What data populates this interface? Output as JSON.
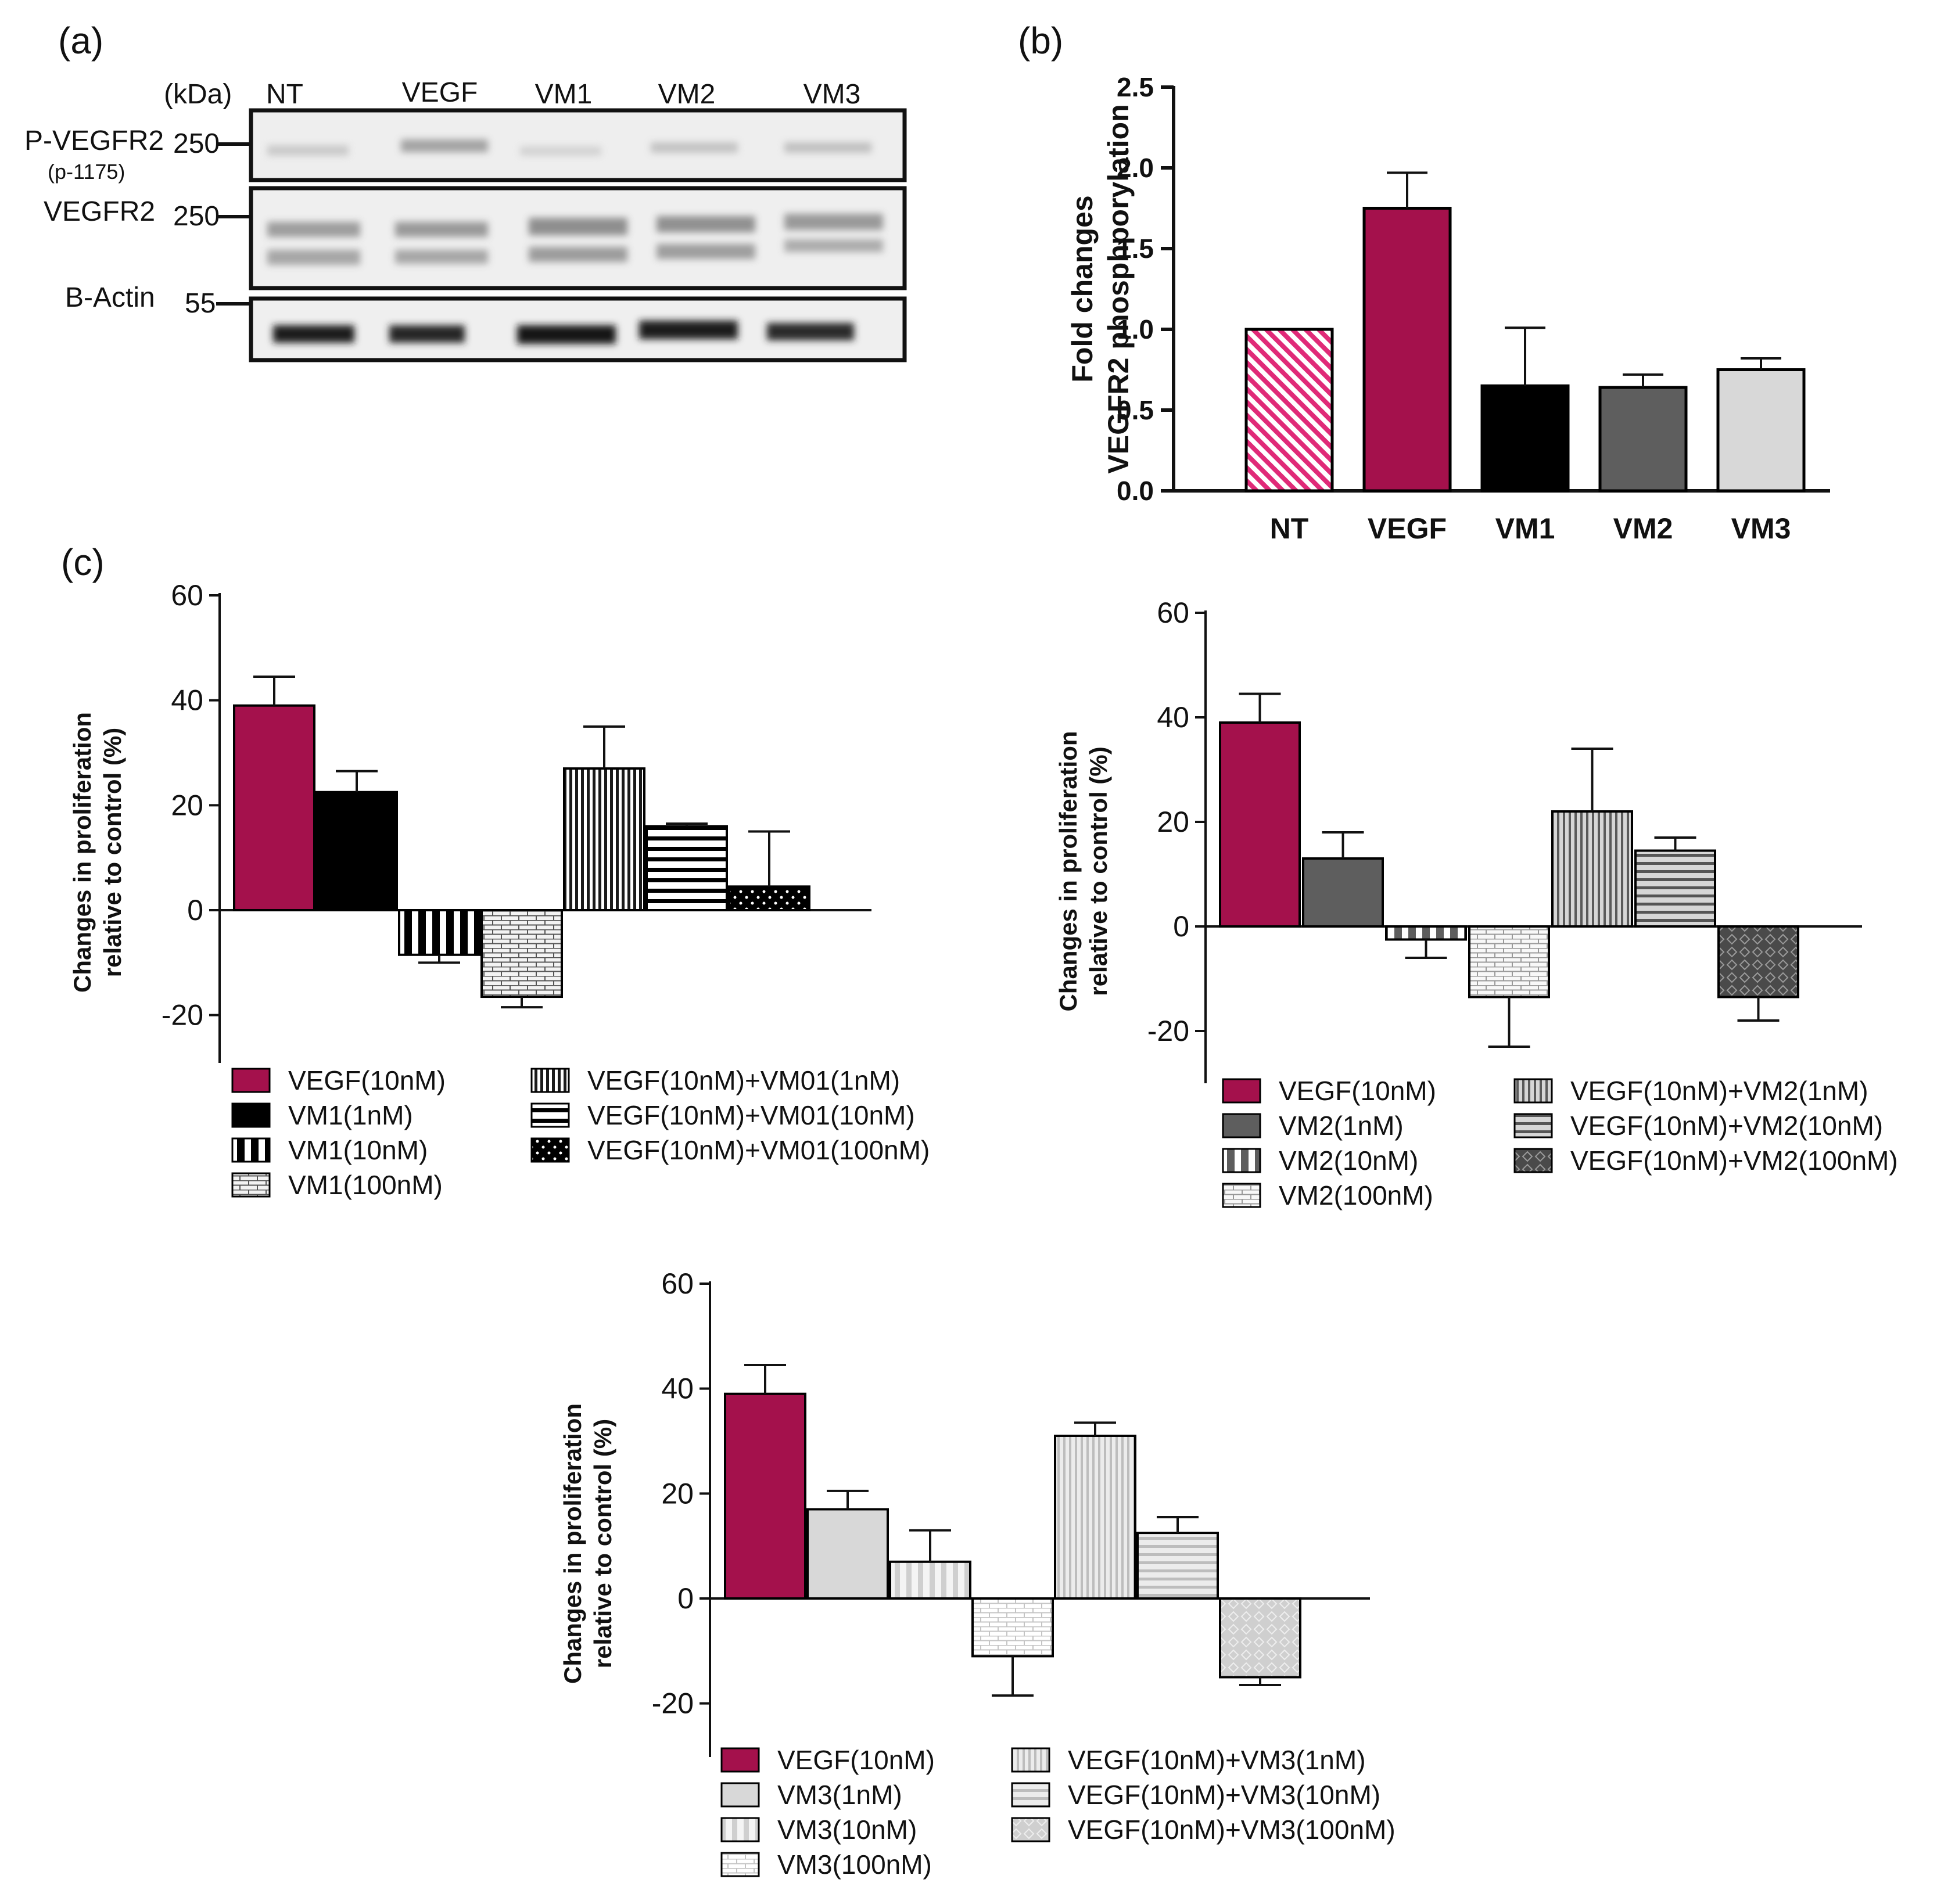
{
  "panels": {
    "a": "(a)",
    "b": "(b)",
    "c": "(c)"
  },
  "western_blot": {
    "unit_label": "(kDa)",
    "lanes": [
      "NT",
      "VEGF",
      "VM1",
      "VM2",
      "VM3"
    ],
    "rows": [
      {
        "label": "P-VEGFR2",
        "sublabel": "(p-1175)",
        "marker": "250"
      },
      {
        "label": "VEGFR2",
        "sublabel": "",
        "marker": "250"
      },
      {
        "label": "B-Actin",
        "sublabel": "",
        "marker": "55"
      }
    ]
  },
  "colors": {
    "vegf": "#a4114c",
    "nt_stripe": "#e02a78",
    "vm1": "#000000",
    "vm2": "#5e5e5e",
    "vm3": "#d8d8d8"
  },
  "chart_data": [
    {
      "id": "b",
      "type": "bar",
      "title": "",
      "ylabel": "Fold changes VEGFR2 phosphporylation",
      "ylabel_lines": [
        "Fold changes",
        "VEGFR2 phosphporylation"
      ],
      "ylim": [
        0,
        2.5
      ],
      "yticks": [
        "0.0",
        "0.5",
        "1.0",
        "1.5",
        "2.0",
        "2.5"
      ],
      "categories": [
        "NT",
        "VEGF",
        "VM1",
        "VM2",
        "VM3"
      ],
      "values": [
        1.0,
        1.75,
        0.65,
        0.64,
        0.75
      ],
      "errors": [
        0.0,
        0.22,
        0.36,
        0.08,
        0.07
      ]
    },
    {
      "id": "c1",
      "type": "bar",
      "ylabel": "Changes in proliferation relative to control (%)",
      "ylabel_lines": [
        "Changes in proliferation",
        "relative to control (%)"
      ],
      "ylim": [
        -30,
        60
      ],
      "yticks": [
        "-20",
        "0",
        "20",
        "40",
        "60"
      ],
      "categories": [
        "VEGF(10nM)",
        "VM1(1nM)",
        "VM1(10nM)",
        "VM1(100nM)",
        "VEGF(10nM)+VM01(1nM)",
        "VEGF(10nM)+VM01(10nM)",
        "VEGF(10nM)+VM01(100nM)"
      ],
      "values": [
        39,
        22.5,
        -8.5,
        -16.5,
        27,
        16,
        4.5
      ],
      "errors": [
        5.5,
        4,
        1.5,
        2,
        8,
        0.5,
        10.5
      ],
      "legend": [
        "VEGF(10nM)",
        "VM1(1nM)",
        "VM1(10nM)",
        "VM1(100nM)",
        "VEGF(10nM)+VM01(1nM)",
        "VEGF(10nM)+VM01(10nM)",
        "VEGF(10nM)+VM01(100nM)"
      ]
    },
    {
      "id": "c2",
      "type": "bar",
      "ylabel": "Changes in proliferation relative to control (%)",
      "ylabel_lines": [
        "Changes in proliferation",
        "relative to control (%)"
      ],
      "ylim": [
        -30,
        60
      ],
      "yticks": [
        "-20",
        "0",
        "20",
        "40",
        "60"
      ],
      "categories": [
        "VEGF(10nM)",
        "VM2(1nM)",
        "VM2(10nM)",
        "VM2(100nM)",
        "VEGF(10nM)+VM2(1nM)",
        "VEGF(10nM)+VM2(10nM)",
        "VEGF(10nM)+VM2(100nM)"
      ],
      "values": [
        39,
        13,
        -2.5,
        -13.5,
        22,
        14.5,
        -13.5
      ],
      "errors": [
        5.5,
        5,
        3.5,
        9.5,
        12,
        2.5,
        4.5
      ],
      "legend": [
        "VEGF(10nM)",
        "VM2(1nM)",
        "VM2(10nM)",
        "VM2(100nM)",
        "VEGF(10nM)+VM2(1nM)",
        "VEGF(10nM)+VM2(10nM)",
        "VEGF(10nM)+VM2(100nM)"
      ]
    },
    {
      "id": "c3",
      "type": "bar",
      "ylabel": "Changes in proliferation relative to control (%)",
      "ylabel_lines": [
        "Changes in proliferation",
        "relative to control (%)"
      ],
      "ylim": [
        -30,
        60
      ],
      "yticks": [
        "-20",
        "0",
        "20",
        "40",
        "60"
      ],
      "categories": [
        "VEGF(10nM)",
        "VM3(1nM)",
        "VM3(10nM)",
        "VM3(100nM)",
        "VEGF(10nM)+VM3(1nM)",
        "VEGF(10nM)+VM3(10nM)",
        "VEGF(10nM)+VM3(100nM)"
      ],
      "values": [
        39,
        17,
        7,
        -11,
        31,
        12.5,
        -15
      ],
      "errors": [
        5.5,
        3.5,
        6,
        7.5,
        2.5,
        3,
        1.5
      ],
      "legend": [
        "VEGF(10nM)",
        "VM3(1nM)",
        "VM3(10nM)",
        "VM3(100nM)",
        "VEGF(10nM)+VM3(1nM)",
        "VEGF(10nM)+VM3(10nM)",
        "VEGF(10nM)+VM3(100nM)"
      ]
    }
  ]
}
